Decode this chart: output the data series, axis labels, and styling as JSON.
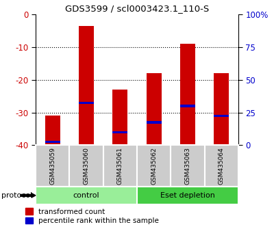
{
  "title": "GDS3599 / scl0003423.1_110-S",
  "samples": [
    "GSM435059",
    "GSM435060",
    "GSM435061",
    "GSM435062",
    "GSM435063",
    "GSM435064"
  ],
  "bar_tops": [
    -31,
    -3.5,
    -23,
    -18,
    -9,
    -18
  ],
  "bar_bottoms": [
    -40,
    -40,
    -40,
    -40,
    -40,
    -40
  ],
  "blue_marker_vals": [
    -39,
    -27,
    -36,
    -33,
    -28,
    -31
  ],
  "ylim": [
    -40,
    0
  ],
  "yticks_left": [
    0,
    -10,
    -20,
    -30,
    -40
  ],
  "yticks_right": [
    0,
    25,
    50,
    75,
    100
  ],
  "bar_color": "#cc0000",
  "blue_color": "#0000cc",
  "groups": [
    {
      "label": "control",
      "indices": [
        0,
        1,
        2
      ],
      "color": "#99ee99"
    },
    {
      "label": "Eset depletion",
      "indices": [
        3,
        4,
        5
      ],
      "color": "#44cc44"
    }
  ],
  "protocol_label": "protocol",
  "legend_red_label": "transformed count",
  "legend_blue_label": "percentile rank within the sample",
  "tick_label_color_left": "#cc0000",
  "tick_label_color_right": "#0000cc",
  "bar_width": 0.45
}
